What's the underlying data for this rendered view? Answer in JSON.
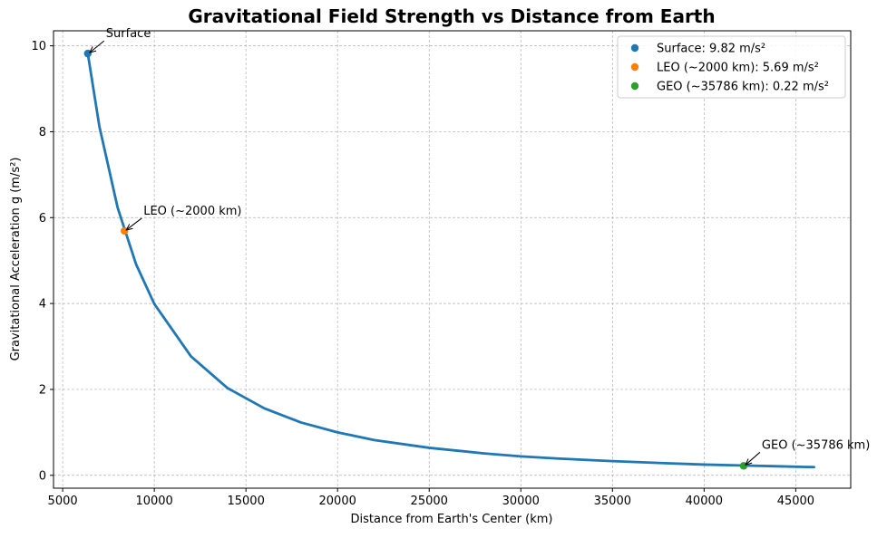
{
  "chart_data": {
    "type": "line",
    "title": "Gravitational Field Strength vs Distance from Earth",
    "xlabel": "Distance from Earth's Center (km)",
    "ylabel": "Gravitational Acceleration g (m/s²)",
    "xlim": [
      4500,
      48000
    ],
    "ylim": [
      -0.3,
      10.35
    ],
    "xticks": [
      5000,
      10000,
      15000,
      20000,
      25000,
      30000,
      35000,
      40000,
      45000
    ],
    "yticks": [
      0,
      2,
      4,
      6,
      8,
      10
    ],
    "grid": true,
    "legend_position": "upper right",
    "series": [
      {
        "color": "#1f77b4",
        "x": [
          6371,
          7000,
          8000,
          9000,
          10000,
          12000,
          14000,
          16000,
          18000,
          20000,
          22000,
          25000,
          28000,
          30000,
          32000,
          35000,
          38000,
          40000,
          42000,
          44000,
          46000
        ],
        "y": [
          9.82,
          8.13,
          6.23,
          4.92,
          3.99,
          2.77,
          2.03,
          1.56,
          1.23,
          1.0,
          0.82,
          0.64,
          0.51,
          0.44,
          0.39,
          0.33,
          0.28,
          0.25,
          0.23,
          0.21,
          0.19
        ]
      }
    ],
    "points": [
      {
        "legend": "Surface: 9.82 m/s²",
        "annotation": "Surface",
        "x": 6371,
        "y": 9.82,
        "color": "#1f77b4"
      },
      {
        "legend": "LEO (~2000 km): 5.69 m/s²",
        "annotation": "LEO (~2000 km)",
        "x": 8371,
        "y": 5.69,
        "color": "#ff7f0e"
      },
      {
        "legend": "GEO (~35786 km): 0.22 m/s²",
        "annotation": "GEO (~35786 km)",
        "x": 42157,
        "y": 0.22,
        "color": "#2ca02c"
      }
    ]
  }
}
